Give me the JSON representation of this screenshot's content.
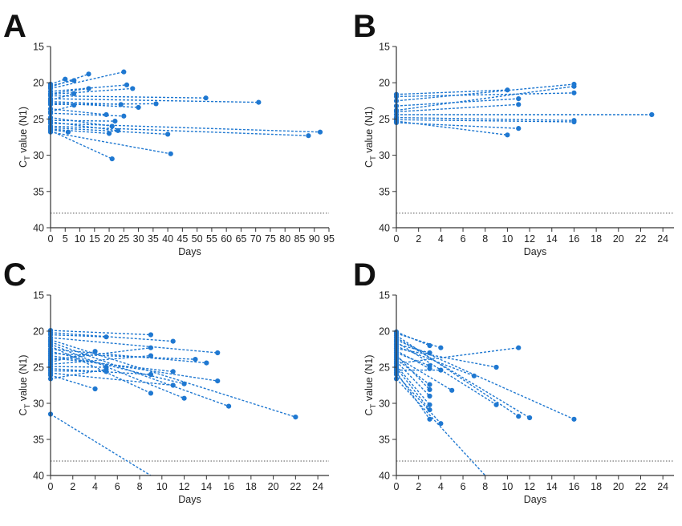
{
  "colors": {
    "series": "#1f78d1",
    "cutoff": "#555555",
    "axis": "#333333"
  },
  "chart_data": [
    {
      "panel": "A",
      "type": "line",
      "xlabel": "Days",
      "ylabel_main": "C",
      "ylabel_sub": "T",
      "ylabel_rest": " value (N1)",
      "xlim": [
        0,
        95
      ],
      "ylim": [
        15,
        40
      ],
      "y_inverted": true,
      "xticks": [
        0,
        5,
        10,
        15,
        20,
        25,
        30,
        35,
        40,
        45,
        50,
        55,
        60,
        65,
        70,
        75,
        80,
        85,
        90,
        95
      ],
      "yticks": [
        15,
        20,
        25,
        30,
        35,
        40
      ],
      "cutoff": 38,
      "series": [
        {
          "x": [
            0,
            5
          ],
          "y": [
            20.2,
            19.5
          ]
        },
        {
          "x": [
            0,
            8
          ],
          "y": [
            20.4,
            19.7
          ]
        },
        {
          "x": [
            0,
            13
          ],
          "y": [
            20.6,
            18.8
          ]
        },
        {
          "x": [
            0,
            25
          ],
          "y": [
            20.8,
            18.5
          ]
        },
        {
          "x": [
            0,
            26
          ],
          "y": [
            21.2,
            20.3
          ]
        },
        {
          "x": [
            0,
            28
          ],
          "y": [
            21.6,
            20.8
          ]
        },
        {
          "x": [
            0,
            13
          ],
          "y": [
            21.5,
            20.8
          ]
        },
        {
          "x": [
            0,
            53
          ],
          "y": [
            21.8,
            22.1
          ]
        },
        {
          "x": [
            0,
            71
          ],
          "y": [
            22.2,
            22.7
          ]
        },
        {
          "x": [
            0,
            8
          ],
          "y": [
            22.4,
            21.5
          ]
        },
        {
          "x": [
            0,
            24
          ],
          "y": [
            22.6,
            23.0
          ]
        },
        {
          "x": [
            0,
            30
          ],
          "y": [
            22.8,
            23.4
          ]
        },
        {
          "x": [
            0,
            36
          ],
          "y": [
            23.0,
            22.9
          ]
        },
        {
          "x": [
            0,
            19
          ],
          "y": [
            23.6,
            24.4
          ]
        },
        {
          "x": [
            0,
            8
          ],
          "y": [
            24.0,
            23.1
          ]
        },
        {
          "x": [
            0,
            25
          ],
          "y": [
            24.2,
            24.6
          ]
        },
        {
          "x": [
            0,
            21
          ],
          "y": [
            24.8,
            26.0
          ]
        },
        {
          "x": [
            0,
            22
          ],
          "y": [
            25.2,
            25.3
          ]
        },
        {
          "x": [
            0,
            23
          ],
          "y": [
            25.4,
            26.6
          ]
        },
        {
          "x": [
            0,
            92
          ],
          "y": [
            25.6,
            26.8
          ]
        },
        {
          "x": [
            0,
            88
          ],
          "y": [
            26.0,
            27.3
          ]
        },
        {
          "x": [
            0,
            40
          ],
          "y": [
            26.2,
            27.1
          ]
        },
        {
          "x": [
            0,
            20
          ],
          "y": [
            26.4,
            27.0
          ]
        },
        {
          "x": [
            0,
            21
          ],
          "y": [
            26.6,
            30.5
          ]
        },
        {
          "x": [
            0,
            41
          ],
          "y": [
            26.8,
            29.8
          ]
        },
        {
          "x": [
            0,
            6
          ],
          "y": [
            26.5,
            26.8
          ]
        }
      ]
    },
    {
      "panel": "B",
      "type": "line",
      "xlabel": "Days",
      "ylabel_main": "C",
      "ylabel_sub": "T",
      "ylabel_rest": " value (N1)",
      "xlim": [
        0,
        25
      ],
      "ylim": [
        15,
        40
      ],
      "y_inverted": true,
      "xticks": [
        0,
        2,
        4,
        6,
        8,
        10,
        12,
        14,
        16,
        18,
        20,
        22,
        24
      ],
      "yticks": [
        15,
        20,
        25,
        30,
        35,
        40
      ],
      "cutoff": 38,
      "series": [
        {
          "x": [
            0,
            10
          ],
          "y": [
            21.6,
            21.0
          ]
        },
        {
          "x": [
            0,
            16
          ],
          "y": [
            21.9,
            21.4
          ]
        },
        {
          "x": [
            0,
            16
          ],
          "y": [
            22.5,
            20.2
          ]
        },
        {
          "x": [
            0,
            11
          ],
          "y": [
            23.2,
            22.2
          ]
        },
        {
          "x": [
            0,
            16
          ],
          "y": [
            23.8,
            20.5
          ]
        },
        {
          "x": [
            0,
            11
          ],
          "y": [
            24.0,
            23.0
          ]
        },
        {
          "x": [
            0,
            23
          ],
          "y": [
            24.4,
            24.4
          ]
        },
        {
          "x": [
            0,
            16
          ],
          "y": [
            24.8,
            25.2
          ]
        },
        {
          "x": [
            0,
            16
          ],
          "y": [
            25.1,
            25.4
          ]
        },
        {
          "x": [
            0,
            10
          ],
          "y": [
            25.3,
            27.2
          ]
        },
        {
          "x": [
            0,
            11
          ],
          "y": [
            25.5,
            26.3
          ]
        }
      ]
    },
    {
      "panel": "C",
      "type": "line",
      "xlabel": "Days",
      "ylabel_main": "C",
      "ylabel_sub": "T",
      "ylabel_rest": " value (N1)",
      "xlim": [
        0,
        25
      ],
      "ylim": [
        15,
        40
      ],
      "y_inverted": true,
      "xticks": [
        0,
        2,
        4,
        6,
        8,
        10,
        12,
        14,
        16,
        18,
        20,
        22,
        24
      ],
      "yticks": [
        15,
        20,
        25,
        30,
        35,
        40
      ],
      "cutoff": 38,
      "series": [
        {
          "x": [
            0,
            9
          ],
          "y": [
            19.9,
            20.5
          ]
        },
        {
          "x": [
            0,
            11
          ],
          "y": [
            20.2,
            21.4
          ]
        },
        {
          "x": [
            0,
            5
          ],
          "y": [
            20.5,
            20.8
          ]
        },
        {
          "x": [
            0,
            15
          ],
          "y": [
            20.9,
            23.0
          ]
        },
        {
          "x": [
            0,
            22
          ],
          "y": [
            21.2,
            31.9
          ]
        },
        {
          "x": [
            0,
            16
          ],
          "y": [
            21.5,
            30.4
          ]
        },
        {
          "x": [
            0,
            12
          ],
          "y": [
            21.8,
            29.3
          ]
        },
        {
          "x": [
            0,
            9
          ],
          "y": [
            22.1,
            28.6
          ]
        },
        {
          "x": [
            0,
            14
          ],
          "y": [
            22.5,
            24.4
          ]
        },
        {
          "x": [
            0,
            12
          ],
          "y": [
            22.8,
            27.3
          ]
        },
        {
          "x": [
            0,
            13
          ],
          "y": [
            23.1,
            23.9
          ]
        },
        {
          "x": [
            0,
            15
          ],
          "y": [
            23.4,
            26.9
          ]
        },
        {
          "x": [
            0,
            11
          ],
          "y": [
            23.7,
            25.6
          ]
        },
        {
          "x": [
            0,
            9
          ],
          "y": [
            24.0,
            22.3
          ]
        },
        {
          "x": [
            0,
            4
          ],
          "y": [
            24.3,
            22.8
          ]
        },
        {
          "x": [
            0,
            9
          ],
          "y": [
            24.6,
            23.4
          ]
        },
        {
          "x": [
            0,
            5
          ],
          "y": [
            24.9,
            25.0
          ]
        },
        {
          "x": [
            0,
            9
          ],
          "y": [
            25.2,
            26.0
          ]
        },
        {
          "x": [
            0,
            5
          ],
          "y": [
            25.5,
            25.6
          ]
        },
        {
          "x": [
            0,
            11
          ],
          "y": [
            25.8,
            27.5
          ]
        },
        {
          "x": [
            0,
            4
          ],
          "y": [
            26.1,
            28.0
          ]
        },
        {
          "x": [
            0,
            5
          ],
          "y": [
            26.6,
            25.3
          ]
        },
        {
          "x": [
            0,
            9
          ],
          "y": [
            31.5,
            40.0
          ]
        }
      ]
    },
    {
      "panel": "D",
      "type": "line",
      "xlabel": "Days",
      "ylabel_main": "C",
      "ylabel_sub": "T",
      "ylabel_rest": " value (N1)",
      "xlim": [
        0,
        25
      ],
      "ylim": [
        15,
        40
      ],
      "y_inverted": true,
      "xticks": [
        0,
        2,
        4,
        6,
        8,
        10,
        12,
        14,
        16,
        18,
        20,
        22,
        24
      ],
      "yticks": [
        15,
        20,
        25,
        30,
        35,
        40
      ],
      "cutoff": 38,
      "series": [
        {
          "x": [
            0,
            3
          ],
          "y": [
            20.1,
            22.0
          ]
        },
        {
          "x": [
            0,
            4
          ],
          "y": [
            20.3,
            22.3
          ]
        },
        {
          "x": [
            0,
            11
          ],
          "y": [
            20.6,
            31.8
          ]
        },
        {
          "x": [
            0,
            12
          ],
          "y": [
            20.9,
            32.0
          ]
        },
        {
          "x": [
            0,
            16
          ],
          "y": [
            21.2,
            32.2
          ]
        },
        {
          "x": [
            0,
            9
          ],
          "y": [
            21.5,
            30.2
          ]
        },
        {
          "x": [
            0,
            3
          ],
          "y": [
            21.8,
            23.0
          ]
        },
        {
          "x": [
            0,
            7
          ],
          "y": [
            22.1,
            26.2
          ]
        },
        {
          "x": [
            0,
            9
          ],
          "y": [
            22.4,
            25.0
          ]
        },
        {
          "x": [
            0,
            3
          ],
          "y": [
            22.7,
            25.2
          ]
        },
        {
          "x": [
            0,
            3
          ],
          "y": [
            23.0,
            24.8
          ]
        },
        {
          "x": [
            0,
            3
          ],
          "y": [
            23.3,
            28.1
          ]
        },
        {
          "x": [
            0,
            5
          ],
          "y": [
            23.6,
            28.2
          ]
        },
        {
          "x": [
            0,
            3
          ],
          "y": [
            23.9,
            27.4
          ]
        },
        {
          "x": [
            0,
            3
          ],
          "y": [
            24.2,
            29.0
          ]
        },
        {
          "x": [
            0,
            11
          ],
          "y": [
            24.5,
            22.3
          ]
        },
        {
          "x": [
            0,
            3
          ],
          "y": [
            24.8,
            30.2
          ]
        },
        {
          "x": [
            0,
            3
          ],
          "y": [
            25.1,
            30.9
          ]
        },
        {
          "x": [
            0,
            4
          ],
          "y": [
            25.4,
            25.4
          ]
        },
        {
          "x": [
            0,
            3
          ],
          "y": [
            25.7,
            32.2
          ]
        },
        {
          "x": [
            0,
            4
          ],
          "y": [
            26.0,
            32.8
          ]
        },
        {
          "x": [
            0,
            8
          ],
          "y": [
            26.6,
            40.0
          ]
        }
      ]
    }
  ]
}
